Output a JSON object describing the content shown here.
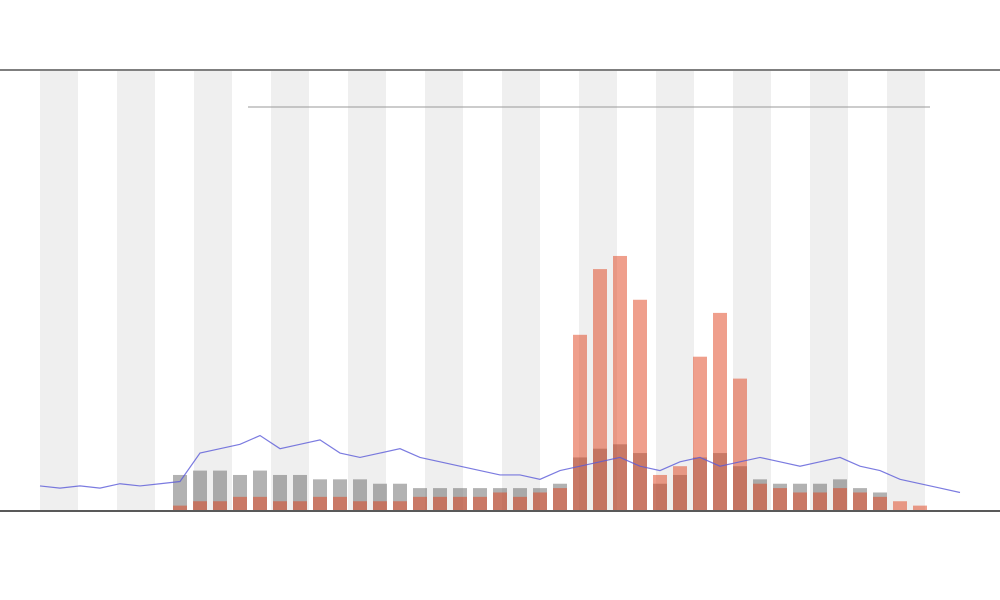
{
  "chart_data": {
    "type": "line",
    "x": [
      0,
      1,
      2,
      3,
      4,
      5,
      6,
      7,
      8,
      9,
      10,
      11,
      12,
      13,
      14,
      15,
      16,
      17,
      18,
      19,
      20,
      21,
      22,
      23,
      24,
      25,
      26,
      27,
      28,
      29,
      30,
      31,
      32,
      33,
      34,
      35,
      36,
      37,
      38,
      39,
      40,
      41,
      42,
      43,
      44,
      45,
      46
    ],
    "xlim": [
      0,
      46
    ],
    "ylim": [
      0,
      100
    ],
    "series": [
      {
        "color": "#5a5ad8",
        "values": [
          5.5,
          5,
          5.5,
          5,
          6,
          5.5,
          6,
          6.5,
          13,
          14,
          15,
          17,
          14,
          15,
          16,
          13,
          12,
          13,
          14,
          12,
          11,
          10,
          9,
          8,
          8,
          7,
          9,
          10,
          11,
          12,
          10,
          9,
          11,
          12,
          10,
          11,
          12,
          11,
          10,
          11,
          12,
          10,
          9,
          7,
          6,
          5,
          4
        ]
      },
      {
        "color": "#555555",
        "values": [
          0,
          0,
          0,
          0,
          0,
          0,
          0,
          8,
          9,
          9,
          8,
          9,
          8,
          8,
          7,
          7,
          7,
          6,
          6,
          5,
          5,
          5,
          5,
          5,
          5,
          5,
          6,
          12,
          14,
          15,
          13,
          6,
          8,
          12,
          13,
          10,
          7,
          6,
          6,
          6,
          7,
          5,
          4,
          0,
          0,
          0,
          0
        ]
      },
      {
        "color": "#e0401a",
        "values": [
          0,
          0,
          0,
          0,
          0,
          0,
          0,
          1,
          2,
          2,
          3,
          3,
          2,
          2,
          3,
          3,
          2,
          2,
          2,
          3,
          3,
          3,
          3,
          4,
          3,
          4,
          5,
          40,
          55,
          58,
          48,
          8,
          10,
          35,
          45,
          30,
          6,
          5,
          4,
          4,
          5,
          4,
          3,
          2,
          1,
          0,
          0
        ]
      }
    ]
  }
}
